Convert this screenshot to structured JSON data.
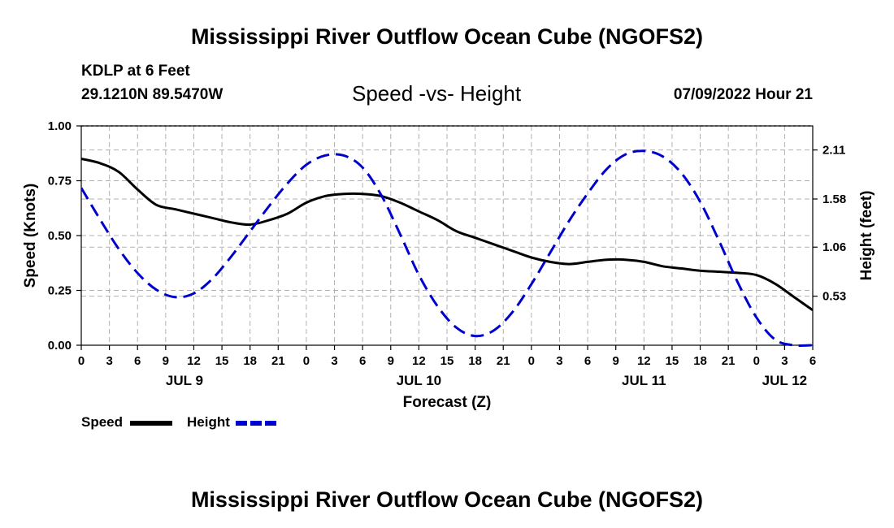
{
  "header": {
    "title": "Mississippi River Outflow Ocean Cube (NGOFS2)",
    "station": "KDLP at 6 Feet",
    "coords": "29.1210N  89.5470W",
    "datetime": "07/09/2022 Hour 21"
  },
  "footer": {
    "title": "Mississippi River Outflow Ocean Cube (NGOFS2)"
  },
  "legend": {
    "speed_label": "Speed",
    "height_label": "Height"
  },
  "colors": {
    "speed": "#000000",
    "height": "#0000cc",
    "grid": "#b0b0b0"
  },
  "chart_data": {
    "type": "line",
    "title": "Speed -vs- Height",
    "xlabel": "Forecast (Z)",
    "ylabel": "Speed (Knots)",
    "y2label": "Height (feet)",
    "ylim": [
      0,
      1.0
    ],
    "y2lim": [
      0,
      2.37
    ],
    "yticks": [
      "0.00",
      "0.25",
      "0.50",
      "0.75",
      "1.00"
    ],
    "y2ticks": [
      "0.53",
      "1.06",
      "1.58",
      "2.11"
    ],
    "x_hours_range": [
      0,
      78
    ],
    "x_tick_labels": [
      "0",
      "3",
      "6",
      "9",
      "12",
      "15",
      "18",
      "21",
      "0",
      "3",
      "6",
      "9",
      "12",
      "15",
      "18",
      "21",
      "0",
      "3",
      "6",
      "9",
      "12",
      "15",
      "18",
      "21",
      "0",
      "3",
      "6"
    ],
    "date_labels": [
      {
        "label": "JUL 9",
        "hour": 11
      },
      {
        "label": "JUL 10",
        "hour": 36
      },
      {
        "label": "JUL 11",
        "hour": 60
      },
      {
        "label": "JUL 12",
        "hour": 75
      }
    ],
    "series": [
      {
        "name": "Speed",
        "axis": "left",
        "style": "solid",
        "x": [
          0,
          2,
          4,
          6,
          8,
          10,
          12,
          14,
          16,
          18,
          20,
          22,
          24,
          26,
          28,
          30,
          32,
          34,
          36,
          38,
          40,
          42,
          44,
          46,
          48,
          50,
          52,
          54,
          56,
          58,
          60,
          62,
          64,
          66,
          68,
          70,
          72,
          74,
          76,
          78
        ],
        "values": [
          0.85,
          0.83,
          0.79,
          0.71,
          0.64,
          0.62,
          0.6,
          0.58,
          0.56,
          0.55,
          0.57,
          0.6,
          0.65,
          0.68,
          0.69,
          0.69,
          0.68,
          0.65,
          0.61,
          0.57,
          0.52,
          0.49,
          0.46,
          0.43,
          0.4,
          0.38,
          0.37,
          0.38,
          0.39,
          0.39,
          0.38,
          0.36,
          0.35,
          0.34,
          0.335,
          0.33,
          0.32,
          0.28,
          0.22,
          0.16
        ]
      },
      {
        "name": "Height",
        "axis": "right",
        "style": "dashed",
        "x": [
          0,
          2,
          4,
          6,
          8,
          10,
          12,
          14,
          16,
          18,
          20,
          22,
          24,
          26,
          28,
          30,
          32,
          34,
          36,
          38,
          40,
          42,
          44,
          46,
          48,
          50,
          52,
          54,
          56,
          58,
          60,
          62,
          64,
          66,
          68,
          70,
          72,
          74,
          76,
          78
        ],
        "values": [
          1.7,
          1.36,
          1.04,
          0.78,
          0.6,
          0.52,
          0.56,
          0.72,
          0.96,
          1.23,
          1.5,
          1.75,
          1.95,
          2.05,
          2.05,
          1.92,
          1.62,
          1.2,
          0.76,
          0.42,
          0.19,
          0.1,
          0.16,
          0.36,
          0.66,
          1.0,
          1.34,
          1.64,
          1.9,
          2.06,
          2.1,
          2.04,
          1.86,
          1.55,
          1.13,
          0.68,
          0.3,
          0.06,
          0.0,
          0.0
        ]
      }
    ]
  }
}
